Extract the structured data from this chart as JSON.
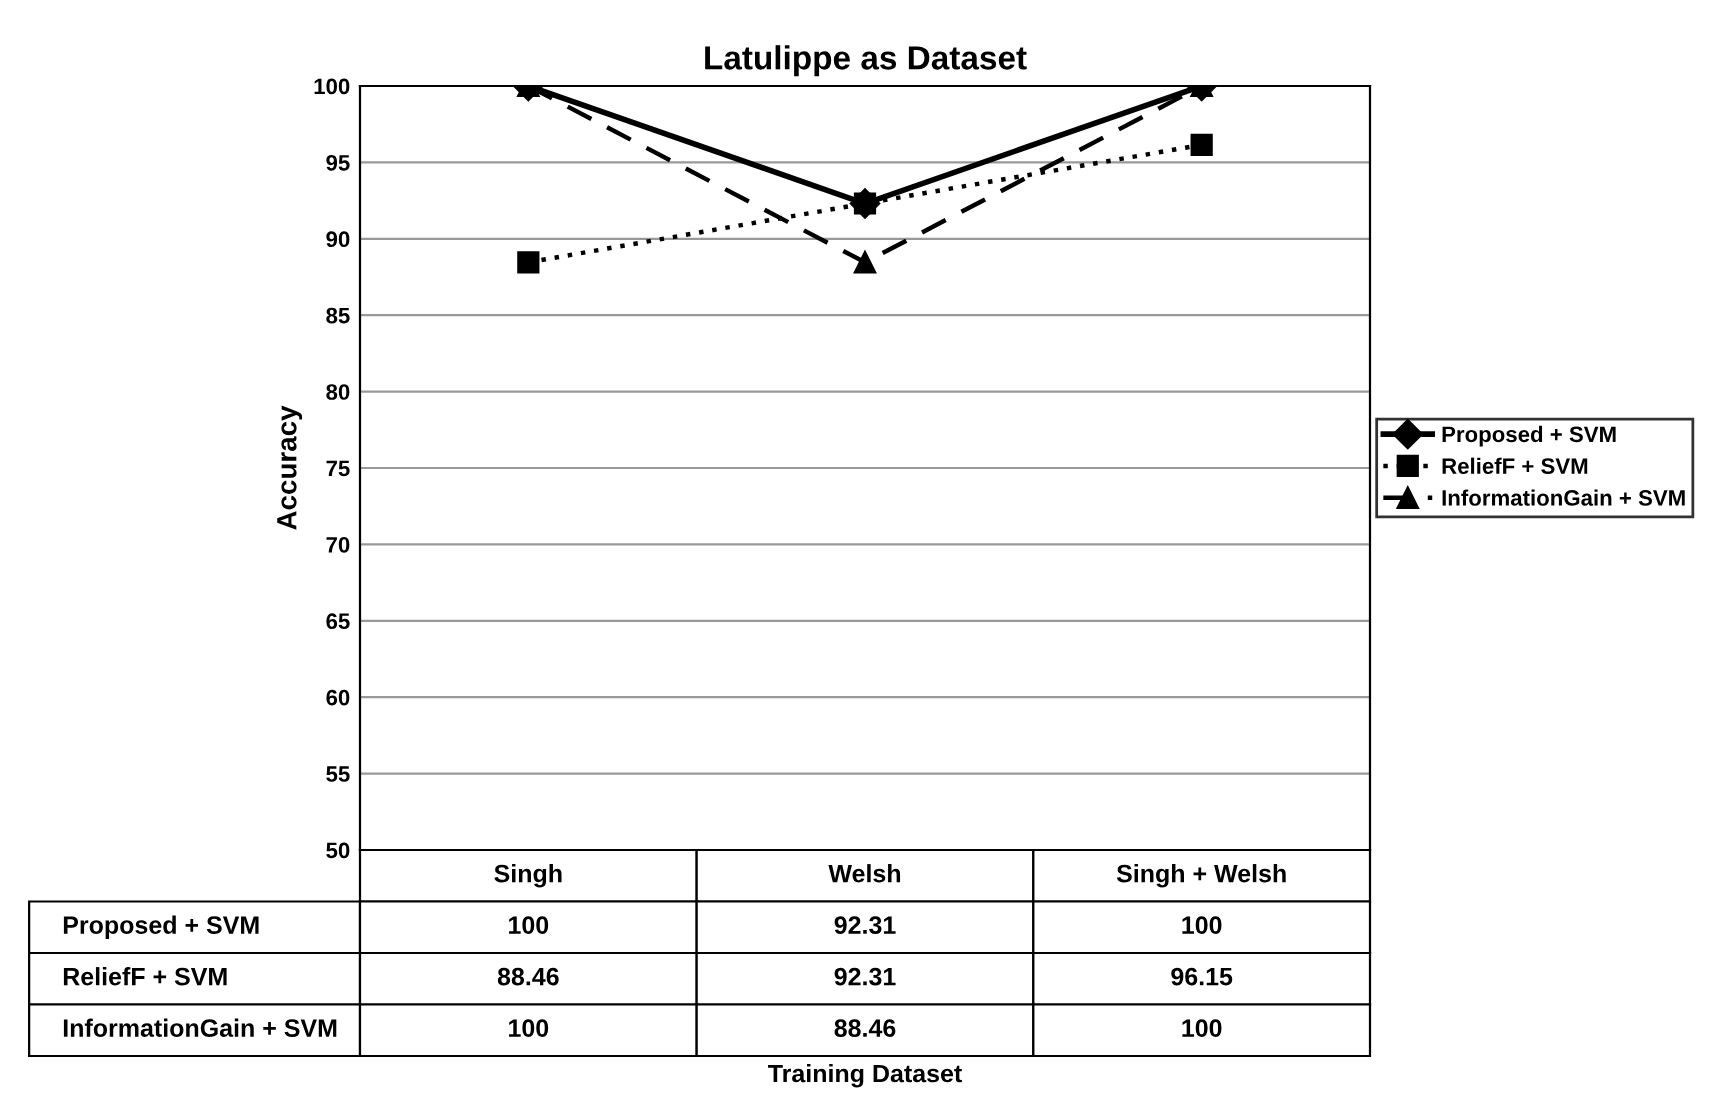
{
  "chart_data": {
    "type": "line",
    "title": "Latulippe as Dataset",
    "annotations": [
      "Training Dataset"
    ],
    "ylabel": "Accuracy",
    "categories": [
      "Singh",
      "Welsh",
      "Singh + Welsh"
    ],
    "series": [
      {
        "name": "Proposed + SVM",
        "color": "#000000",
        "marker": "diamond",
        "line_style": "solid",
        "values": [
          100,
          92.31,
          100
        ]
      },
      {
        "name": "ReliefF + SVM",
        "color": "#000000",
        "marker": "square",
        "line_style": "dotted",
        "values": [
          88.46,
          92.31,
          96.15
        ]
      },
      {
        "name": "InformationGain + SVM",
        "color": "#000000",
        "marker": "triangle",
        "line_style": "dashed",
        "values": [
          100,
          88.46,
          100
        ]
      }
    ],
    "ylim": [
      50,
      100
    ],
    "yticks": [
      50,
      55,
      60,
      65,
      70,
      75,
      80,
      85,
      90,
      95,
      100
    ],
    "grid": "y",
    "legend": "right",
    "data_labels": true
  }
}
